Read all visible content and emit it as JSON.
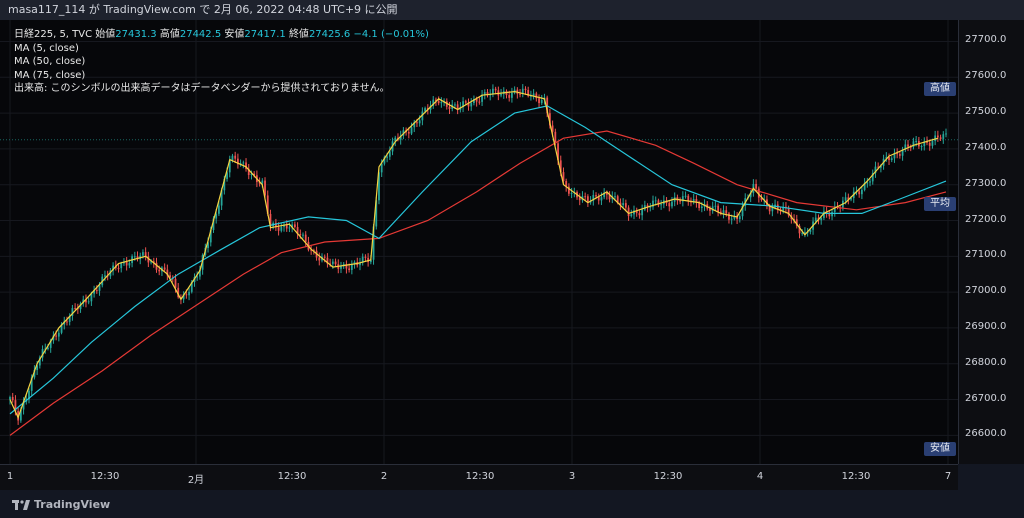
{
  "header": {
    "publish_line": "masa117_114 が TradingView.com で 2月 06, 2022 04:48 UTC+9 に公開"
  },
  "legend": {
    "symbol_line": "日経225, 5, TVC",
    "open_label": "始値",
    "open_value": "27431.3",
    "high_label": "高値",
    "high_value": "27442.5",
    "low_label": "安値",
    "low_value": "27417.1",
    "close_label": "終値",
    "close_value": "27425.6",
    "change": "−4.1 (−0.01%)",
    "ma5": "MA (5, close)",
    "ma50": "MA (50, close)",
    "ma75": "MA (75, close)",
    "volume_note": "出来高: このシンボルの出来高データはデータベンダーから提供されておりません。"
  },
  "tags": {
    "high": "高値",
    "average": "平均",
    "low": "安値"
  },
  "footer": {
    "brand": "TradingView"
  },
  "colors": {
    "up": "#26a69a",
    "down": "#ef5350",
    "ma5": "#f5d442",
    "ma50": "#26c6da",
    "ma75": "#e53935",
    "background": "#06070a"
  },
  "chart_data": {
    "type": "candlestick",
    "symbol": "日経225",
    "interval": "5",
    "price_axis": {
      "ticks": [
        "27700.0",
        "27600.0",
        "27500.0",
        "27400.0",
        "27300.0",
        "27200.0",
        "27100.0",
        "27000.0",
        "26900.0",
        "26800.0",
        "26700.0",
        "26600.0"
      ],
      "range": [
        26520,
        27760
      ]
    },
    "time_axis": {
      "ticks": [
        "1",
        "12:30",
        "2月",
        "12:30",
        "2",
        "12:30",
        "3",
        "12:30",
        "4",
        "12:30",
        "7"
      ]
    },
    "ma5_path": [
      [
        0,
        26700
      ],
      [
        3,
        26650
      ],
      [
        10,
        26800
      ],
      [
        18,
        26900
      ],
      [
        28,
        26980
      ],
      [
        40,
        27080
      ],
      [
        50,
        27100
      ],
      [
        58,
        27050
      ],
      [
        63,
        26980
      ],
      [
        70,
        27060
      ],
      [
        75,
        27200
      ],
      [
        81,
        27370
      ],
      [
        87,
        27350
      ],
      [
        93,
        27300
      ],
      [
        96,
        27180
      ],
      [
        103,
        27190
      ],
      [
        111,
        27120
      ],
      [
        119,
        27070
      ],
      [
        128,
        27080
      ],
      [
        133,
        27090
      ],
      [
        136,
        27350
      ],
      [
        142,
        27420
      ],
      [
        150,
        27480
      ],
      [
        158,
        27540
      ],
      [
        165,
        27510
      ],
      [
        174,
        27550
      ],
      [
        186,
        27560
      ],
      [
        197,
        27540
      ],
      [
        204,
        27300
      ],
      [
        213,
        27250
      ],
      [
        220,
        27280
      ],
      [
        228,
        27220
      ],
      [
        236,
        27240
      ],
      [
        245,
        27260
      ],
      [
        254,
        27250
      ],
      [
        262,
        27220
      ],
      [
        268,
        27210
      ],
      [
        274,
        27290
      ],
      [
        280,
        27240
      ],
      [
        287,
        27220
      ],
      [
        293,
        27160
      ],
      [
        300,
        27220
      ],
      [
        308,
        27250
      ],
      [
        316,
        27310
      ],
      [
        324,
        27380
      ],
      [
        333,
        27410
      ],
      [
        342,
        27430
      ]
    ],
    "ma50_path": [
      [
        0,
        26660
      ],
      [
        16,
        26760
      ],
      [
        30,
        26860
      ],
      [
        46,
        26960
      ],
      [
        62,
        27050
      ],
      [
        78,
        27120
      ],
      [
        92,
        27180
      ],
      [
        110,
        27210
      ],
      [
        124,
        27200
      ],
      [
        136,
        27150
      ],
      [
        152,
        27280
      ],
      [
        170,
        27420
      ],
      [
        186,
        27500
      ],
      [
        198,
        27520
      ],
      [
        212,
        27460
      ],
      [
        228,
        27380
      ],
      [
        244,
        27300
      ],
      [
        262,
        27250
      ],
      [
        282,
        27240
      ],
      [
        300,
        27220
      ],
      [
        314,
        27220
      ],
      [
        328,
        27260
      ],
      [
        345,
        27310
      ]
    ],
    "ma75_path": [
      [
        0,
        26600
      ],
      [
        16,
        26690
      ],
      [
        34,
        26780
      ],
      [
        52,
        26880
      ],
      [
        70,
        26970
      ],
      [
        86,
        27050
      ],
      [
        100,
        27110
      ],
      [
        116,
        27140
      ],
      [
        136,
        27150
      ],
      [
        154,
        27200
      ],
      [
        172,
        27280
      ],
      [
        188,
        27360
      ],
      [
        204,
        27430
      ],
      [
        220,
        27450
      ],
      [
        238,
        27410
      ],
      [
        252,
        27360
      ],
      [
        268,
        27300
      ],
      [
        290,
        27250
      ],
      [
        312,
        27230
      ],
      [
        330,
        27250
      ],
      [
        345,
        27280
      ]
    ],
    "last_price": 27425.6
  }
}
